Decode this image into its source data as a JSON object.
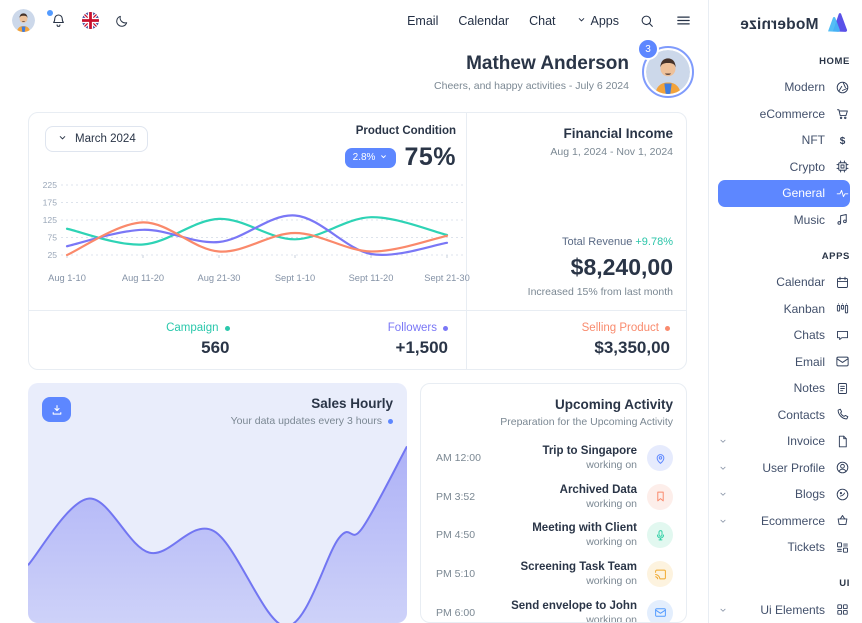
{
  "colors": {
    "primary": "#5d87ff",
    "teal": "#2ed3b5",
    "coral": "#fa896b",
    "purple": "#7a77f6",
    "border": "#e8edf3",
    "heading": "#2a3547",
    "muted": "#7b8893"
  },
  "topbar": {
    "left_icons": [
      "user-avatar",
      "notification-bell-icon",
      "uk-flag-icon",
      "moon-icon"
    ],
    "nav": [
      {
        "label": "Email",
        "chevron": false
      },
      {
        "label": "Calendar",
        "chevron": false
      },
      {
        "label": "Chat",
        "chevron": false
      },
      {
        "label": "Apps",
        "chevron": true
      }
    ],
    "right_icons": [
      "search-icon",
      "menu-icon"
    ]
  },
  "welcome": {
    "name": "Mathew Anderson",
    "subtitle": "Cheers, and happy activities - July 6 2024",
    "badge_count": "3"
  },
  "overview": {
    "period": "March 2024",
    "product_condition": {
      "label": "Product Condition",
      "change": "2.8%",
      "value": "75%"
    },
    "financial": {
      "title": "Financial Income",
      "date_range": "Aug 1, 2024 - Nov 1, 2024",
      "revenue_label": "Total Revenue",
      "revenue_change": "+9.78%",
      "amount": "$8,240,00",
      "note": "Increased 15% from last month"
    },
    "stats": [
      {
        "label": "Campaign",
        "value": "560",
        "color": "#2bc8ac"
      },
      {
        "label": "Followers",
        "value": "+1,500",
        "color": "#7a77f6"
      },
      {
        "label": "Selling Product",
        "value": "$3,350,00",
        "color": "#f98b6e"
      }
    ]
  },
  "chart_data": [
    {
      "type": "line",
      "title": "Financial Income chart",
      "categories": [
        "Aug 1-10",
        "Aug 11-20",
        "Aug 21-30",
        "Sept 1-10",
        "Sept 11-20",
        "Sept 21-30"
      ],
      "series": [
        {
          "name": "Campaign",
          "color": "#2ed3b5",
          "values": [
            100,
            55,
            128,
            70,
            133,
            82
          ]
        },
        {
          "name": "Followers",
          "color": "#7a77f6",
          "values": [
            50,
            97,
            62,
            138,
            28,
            60
          ]
        },
        {
          "name": "Selling Product",
          "color": "#fa896b",
          "values": [
            25,
            118,
            35,
            88,
            35,
            80
          ]
        }
      ],
      "ylim": [
        25,
        225
      ],
      "yticks": [
        225,
        175,
        125,
        75,
        25
      ],
      "grid": "dashed-horizontal",
      "legend": "none"
    },
    {
      "type": "area",
      "title": "Sales Hourly",
      "color": "#7276f2",
      "x": [
        0,
        0.16,
        0.32,
        0.49,
        0.68,
        0.82,
        0.88,
        1
      ],
      "values": [
        0.31,
        0.68,
        0.38,
        0.5,
        -0.03,
        0.46,
        0.51,
        0.97
      ],
      "ylim": [
        0,
        1
      ],
      "grid": "off"
    }
  ],
  "sales_card": {
    "title": "Sales Hourly",
    "subtitle": "Your data updates every 3 hours",
    "download_icon": "download-icon"
  },
  "activity": {
    "title": "Upcoming Activity",
    "subtitle": "Preparation for the Upcoming Activity",
    "items": [
      {
        "time": "AM 12:00",
        "title": "Trip to Singapore",
        "status": "working on",
        "icon": "map-pin-icon",
        "color": "#5d87ff",
        "bg": "#e6ebfd"
      },
      {
        "time": "PM 3:52",
        "title": "Archived Data",
        "status": "working on",
        "icon": "bookmark-icon",
        "color": "#fa896b",
        "bg": "#fdeeea"
      },
      {
        "time": "PM 4:50",
        "title": "Meeting with Client",
        "status": "working on",
        "icon": "microphone-icon",
        "color": "#2fd0a5",
        "bg": "#e2f8f0"
      },
      {
        "time": "PM 5:10",
        "title": "Screening Task Team",
        "status": "working on",
        "icon": "cast-icon",
        "color": "#f0a72a",
        "bg": "#fdf3df"
      },
      {
        "time": "PM 6:00",
        "title": "Send envelope to John",
        "status": "working on",
        "icon": "mail-icon",
        "color": "#539bff",
        "bg": "#e3eefd"
      }
    ]
  },
  "sidebar": {
    "logo": "Modernize",
    "sections": [
      {
        "header": "HOME",
        "items": [
          {
            "label": "Modern",
            "icon": "aperture",
            "active": false,
            "expandable": false
          },
          {
            "label": "eCommerce",
            "icon": "cart",
            "active": false,
            "expandable": false
          },
          {
            "label": "NFT",
            "icon": "dollar",
            "active": false,
            "expandable": false
          },
          {
            "label": "Crypto",
            "icon": "cpu",
            "active": false,
            "expandable": false
          },
          {
            "label": "General",
            "icon": "pulse",
            "active": true,
            "expandable": false
          },
          {
            "label": "Music",
            "icon": "music",
            "active": false,
            "expandable": false
          }
        ]
      },
      {
        "header": "APPS",
        "items": [
          {
            "label": "Calendar",
            "icon": "calendar",
            "active": false,
            "expandable": false
          },
          {
            "label": "Kanban",
            "icon": "kanban",
            "active": false,
            "expandable": false
          },
          {
            "label": "Chats",
            "icon": "chat",
            "active": false,
            "expandable": false
          },
          {
            "label": "Email",
            "icon": "mail",
            "active": false,
            "expandable": false
          },
          {
            "label": "Notes",
            "icon": "note",
            "active": false,
            "expandable": false
          },
          {
            "label": "Contacts",
            "icon": "phone",
            "active": false,
            "expandable": false
          },
          {
            "label": "Invoice",
            "icon": "file",
            "active": false,
            "expandable": true
          },
          {
            "label": "User Profile",
            "icon": "user-circle",
            "active": false,
            "expandable": true
          },
          {
            "label": "Blogs",
            "icon": "blog",
            "active": false,
            "expandable": true
          },
          {
            "label": "Ecommerce",
            "icon": "basket",
            "active": false,
            "expandable": true
          },
          {
            "label": "Tickets",
            "icon": "ticket",
            "active": false,
            "expandable": false
          }
        ]
      },
      {
        "header": "UI",
        "items": [
          {
            "label": "Ui Elements",
            "icon": "grid",
            "active": false,
            "expandable": true
          }
        ]
      }
    ]
  }
}
